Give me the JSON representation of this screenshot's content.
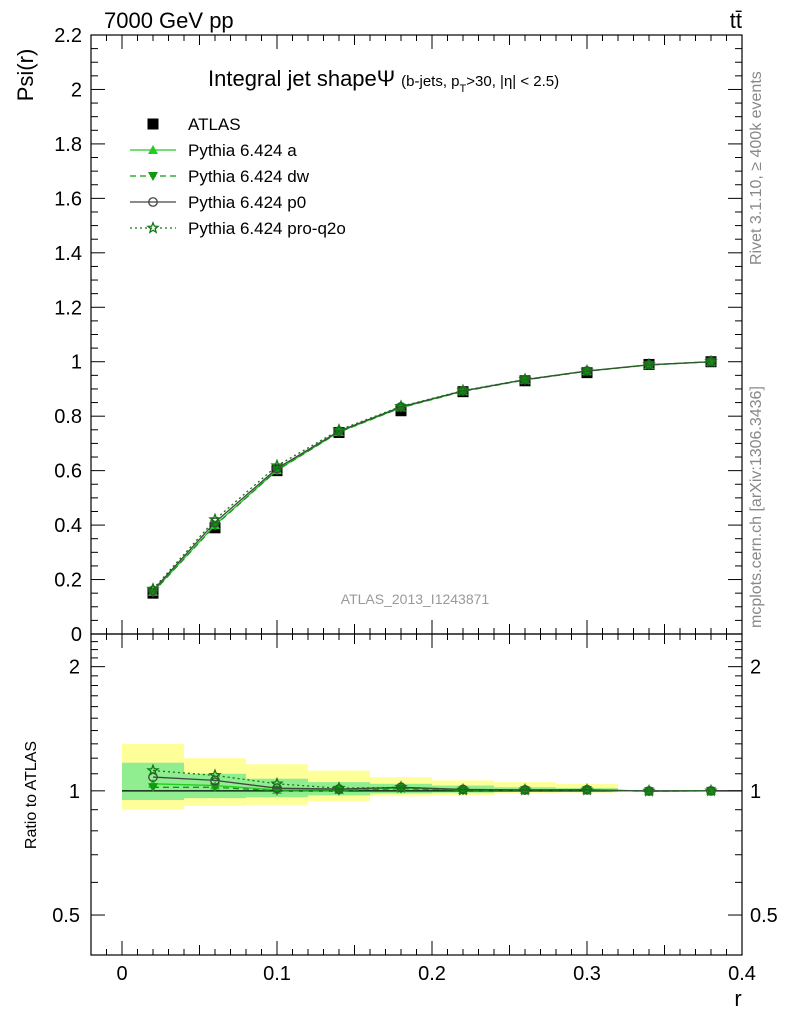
{
  "header": {
    "energy_label": "7000 GeV pp",
    "process_label": "tt̄",
    "side_label_top": "Rivet 3.1.10, ≥ 400k events",
    "side_label_bottom": "mcplots.cern.ch [arXiv:1306.3436]",
    "analysis_id": "ATLAS_2013_I1243871"
  },
  "chart_data": [
    {
      "type": "line",
      "title_main": "Integral jet shapeΨ",
      "title_sub": "(b-jets, p",
      "title_sub_T": "T",
      "title_sub_rest": ">30, |η| < 2.5)",
      "ylabel": "Psi(r)",
      "xlim": [
        -0.02,
        0.4
      ],
      "ylim": [
        0,
        2.2
      ],
      "yticks": [
        0,
        0.2,
        0.4,
        0.6,
        0.8,
        1,
        1.2,
        1.4,
        1.6,
        1.8,
        2,
        2.2
      ],
      "ytick_labels": [
        "0",
        "0.2",
        "0.4",
        "0.6",
        "0.8",
        "1",
        "1.2",
        "1.4",
        "1.6",
        "1.8",
        "2",
        "2.2"
      ],
      "x": [
        0.02,
        0.06,
        0.1,
        0.14,
        0.18,
        0.22,
        0.26,
        0.3,
        0.34,
        0.38
      ],
      "bin_edges": [
        0,
        0.04,
        0.08,
        0.12,
        0.16,
        0.2,
        0.24,
        0.28,
        0.32,
        0.36,
        0.4
      ],
      "series": [
        {
          "name": "ATLAS",
          "values": [
            0.15,
            0.39,
            0.6,
            0.74,
            0.82,
            0.89,
            0.93,
            0.96,
            0.99,
            1.0
          ],
          "color": "#000000",
          "marker": "square",
          "line": "none"
        },
        {
          "name": "Pythia 6.424 a",
          "values": [
            0.155,
            0.4,
            0.602,
            0.742,
            0.832,
            0.892,
            0.934,
            0.966,
            0.988,
            1.0
          ],
          "color": "#22cc22",
          "marker": "triangle-up",
          "line": "solid"
        },
        {
          "name": "Pythia 6.424 dw",
          "values": [
            0.153,
            0.398,
            0.601,
            0.741,
            0.831,
            0.891,
            0.933,
            0.965,
            0.988,
            1.0
          ],
          "color": "#119911",
          "marker": "triangle-down",
          "line": "dashed"
        },
        {
          "name": "Pythia 6.424 p0",
          "values": [
            0.16,
            0.41,
            0.608,
            0.745,
            0.834,
            0.893,
            0.934,
            0.966,
            0.989,
            1.0
          ],
          "color": "#444444",
          "marker": "circle-open",
          "line": "solid"
        },
        {
          "name": "Pythia 6.424 pro-q2o",
          "values": [
            0.165,
            0.42,
            0.618,
            0.749,
            0.836,
            0.894,
            0.935,
            0.966,
            0.989,
            1.0
          ],
          "color": "#117711",
          "marker": "star-open",
          "line": "dotted"
        }
      ]
    },
    {
      "type": "line",
      "ylabel": "Ratio to ATLAS",
      "xlabel": "r",
      "xlim": [
        -0.02,
        0.4
      ],
      "ylim": [
        0.4,
        2.4
      ],
      "log_y": true,
      "yticks": [
        0.5,
        1,
        2
      ],
      "ytick_labels": [
        "0.5",
        "1",
        "2"
      ],
      "xticks": [
        0,
        0.1,
        0.2,
        0.3,
        0.4
      ],
      "xtick_labels": [
        "0",
        "0.1",
        "0.2",
        "0.3",
        "0.4"
      ],
      "bands": {
        "bin_edges": [
          0,
          0.04,
          0.08,
          0.12,
          0.16,
          0.2,
          0.24,
          0.28,
          0.32,
          0.36,
          0.4
        ],
        "yellow_low": [
          0.9,
          0.92,
          0.925,
          0.945,
          0.97,
          0.975,
          0.985,
          0.99,
          1.0,
          1.0
        ],
        "yellow_high": [
          1.3,
          1.2,
          1.16,
          1.12,
          1.08,
          1.06,
          1.05,
          1.04,
          1.0,
          1.0
        ],
        "green_low": [
          0.95,
          0.96,
          0.965,
          0.975,
          0.985,
          0.99,
          0.995,
          0.995,
          1.0,
          1.0
        ],
        "green_high": [
          1.17,
          1.1,
          1.07,
          1.05,
          1.04,
          1.03,
          1.02,
          1.015,
          1.0,
          1.0
        ],
        "yellow_color": "#ffff99",
        "green_color": "#90ee90"
      },
      "series": [
        {
          "name": "Pythia 6.424 a",
          "values": [
            1.04,
            1.03,
            1.005,
            1.005,
            1.015,
            1.005,
            1.005,
            1.005,
            0.998,
            1.0
          ]
        },
        {
          "name": "Pythia 6.424 dw",
          "values": [
            1.02,
            1.02,
            1.0,
            1.0,
            1.012,
            1.002,
            1.003,
            1.004,
            0.998,
            1.0
          ]
        },
        {
          "name": "Pythia 6.424 p0",
          "values": [
            1.08,
            1.06,
            1.015,
            1.01,
            1.02,
            1.008,
            1.005,
            1.006,
            0.999,
            1.0
          ]
        },
        {
          "name": "Pythia 6.424 pro-q2o",
          "values": [
            1.12,
            1.09,
            1.04,
            1.015,
            1.02,
            1.005,
            1.005,
            1.005,
            0.999,
            1.0
          ]
        }
      ]
    }
  ]
}
